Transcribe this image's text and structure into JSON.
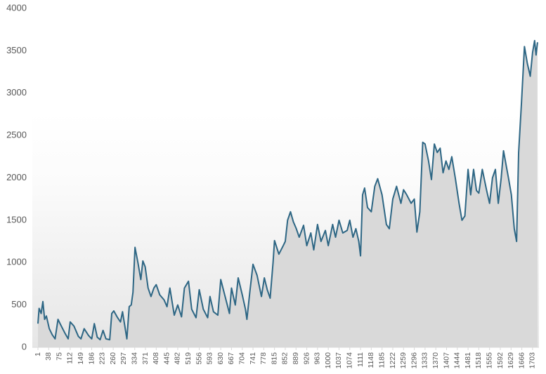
{
  "chart_data": {
    "type": "area",
    "x": [
      1,
      5,
      12,
      18,
      24,
      30,
      40,
      50,
      60,
      70,
      80,
      95,
      105,
      112,
      125,
      140,
      149,
      160,
      175,
      186,
      195,
      205,
      215,
      225,
      235,
      248,
      255,
      262,
      275,
      285,
      292,
      300,
      307,
      315,
      322,
      328,
      335,
      345,
      355,
      362,
      370,
      380,
      390,
      400,
      408,
      420,
      435,
      445,
      455,
      470,
      482,
      495,
      505,
      519,
      530,
      545,
      556,
      570,
      585,
      593,
      605,
      620,
      630,
      645,
      660,
      667,
      680,
      690,
      704,
      715,
      720,
      730,
      741,
      755,
      770,
      780,
      790,
      800,
      810,
      815,
      830,
      845,
      852,
      860,
      870,
      880,
      890,
      900,
      915,
      926,
      940,
      950,
      963,
      975,
      990,
      1000,
      1015,
      1025,
      1037,
      1050,
      1065,
      1074,
      1085,
      1095,
      1105,
      1111,
      1118,
      1125,
      1135,
      1148,
      1160,
      1170,
      1185,
      1200,
      1210,
      1222,
      1235,
      1250,
      1259,
      1270,
      1285,
      1296,
      1305,
      1315,
      1325,
      1333,
      1345,
      1355,
      1365,
      1375,
      1385,
      1395,
      1405,
      1415,
      1425,
      1437,
      1450,
      1460,
      1470,
      1481,
      1490,
      1500,
      1510,
      1518,
      1530,
      1545,
      1555,
      1565,
      1575,
      1585,
      1595,
      1603,
      1612,
      1620,
      1630,
      1640,
      1648,
      1655,
      1665,
      1675,
      1685,
      1695,
      1703,
      1710,
      1715,
      1720
    ],
    "series": [
      {
        "color": "#2d6684",
        "fill": "#d9d9d9",
        "values": [
          280,
          460,
          400,
          540,
          330,
          370,
          220,
          150,
          100,
          330,
          260,
          160,
          100,
          300,
          250,
          130,
          100,
          220,
          140,
          100,
          280,
          120,
          90,
          200,
          100,
          90,
          400,
          430,
          350,
          300,
          420,
          250,
          100,
          480,
          500,
          650,
          1180,
          1000,
          800,
          1020,
          950,
          700,
          600,
          700,
          740,
          620,
          560,
          480,
          700,
          380,
          500,
          360,
          700,
          780,
          450,
          350,
          680,
          450,
          350,
          600,
          420,
          380,
          800,
          600,
          400,
          700,
          500,
          820,
          620,
          450,
          330,
          650,
          980,
          850,
          600,
          820,
          680,
          580,
          1000,
          1260,
          1100,
          1200,
          1250,
          1500,
          1600,
          1480,
          1400,
          1300,
          1440,
          1200,
          1350,
          1150,
          1450,
          1250,
          1380,
          1200,
          1450,
          1300,
          1500,
          1350,
          1380,
          1500,
          1300,
          1400,
          1250,
          1080,
          1800,
          1880,
          1650,
          1600,
          1900,
          1990,
          1800,
          1450,
          1400,
          1750,
          1900,
          1700,
          1860,
          1800,
          1700,
          1750,
          1360,
          1600,
          2420,
          2400,
          2200,
          1980,
          2400,
          2300,
          2350,
          2060,
          2200,
          2100,
          2250,
          2000,
          1700,
          1500,
          1550,
          2100,
          1800,
          2100,
          1850,
          1820,
          2100,
          1850,
          1700,
          2000,
          2100,
          1700,
          2000,
          2320,
          2150,
          2000,
          1800,
          1400,
          1250,
          2300,
          2900,
          3550,
          3350,
          3200,
          3480,
          3620,
          3450,
          3600
        ]
      }
    ],
    "xlim": [
      1,
      1725
    ],
    "xticks": [
      1,
      38,
      75,
      112,
      149,
      186,
      223,
      260,
      297,
      334,
      371,
      408,
      445,
      482,
      519,
      556,
      593,
      630,
      667,
      704,
      741,
      778,
      815,
      852,
      889,
      926,
      963,
      1000,
      1037,
      1074,
      1111,
      1148,
      1185,
      1222,
      1259,
      1296,
      1333,
      1370,
      1407,
      1444,
      1481,
      1518,
      1555,
      1592,
      1629,
      1666,
      1703
    ],
    "ylim": [
      0,
      4000
    ],
    "yticks": [
      0,
      500,
      1000,
      1500,
      2000,
      2500,
      3000,
      3500,
      4000
    ]
  }
}
